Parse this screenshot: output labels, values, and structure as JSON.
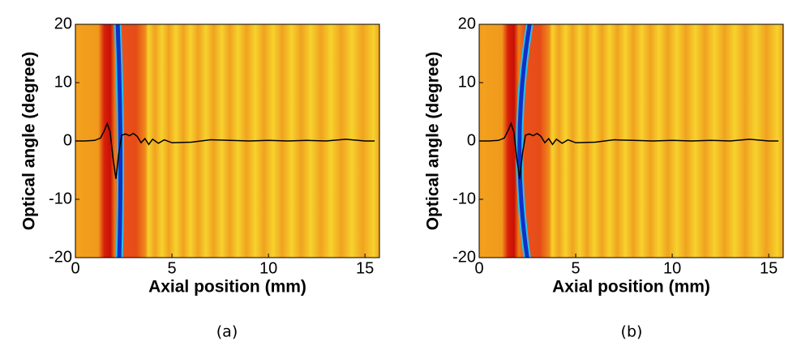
{
  "chart_data": [
    {
      "type": "line",
      "caption": "(a)",
      "xlabel": "Axial position (mm)",
      "ylabel": "Optical angle (degree)",
      "xlim": [
        0,
        15.75
      ],
      "ylim": [
        -20,
        20
      ],
      "xticks": [
        0,
        5,
        10,
        15
      ],
      "yticks": [
        -20,
        -10,
        0,
        10,
        20
      ],
      "color": "#000000",
      "x": [
        0,
        0.5,
        1.0,
        1.3,
        1.5,
        1.65,
        1.8,
        1.95,
        2.1,
        2.25,
        2.4,
        2.6,
        2.8,
        3.0,
        3.2,
        3.4,
        3.6,
        3.8,
        4.0,
        4.3,
        4.6,
        5,
        6,
        7,
        8,
        9,
        10,
        11,
        12,
        13,
        14,
        15,
        15.5
      ],
      "values": [
        0,
        0,
        0.1,
        0.5,
        1.8,
        3,
        1.5,
        -3,
        -6.5,
        -2,
        1,
        1.2,
        0.9,
        1.3,
        0.8,
        -0.3,
        0.4,
        -0.6,
        0.3,
        -0.4,
        0.2,
        -0.3,
        -0.2,
        0.2,
        0.1,
        0,
        0.1,
        0,
        0.1,
        0,
        0.3,
        0,
        0
      ]
    },
    {
      "type": "line",
      "caption": "(b)",
      "xlabel": "Axial position (mm)",
      "ylabel": "Optical angle (degree)",
      "xlim": [
        0,
        15.75
      ],
      "ylim": [
        -20,
        20
      ],
      "xticks": [
        0,
        5,
        10,
        15
      ],
      "yticks": [
        -20,
        -10,
        0,
        10,
        20
      ],
      "color": "#000000",
      "x": [
        0,
        0.5,
        1.0,
        1.3,
        1.5,
        1.65,
        1.8,
        1.95,
        2.1,
        2.25,
        2.4,
        2.6,
        2.8,
        3.0,
        3.2,
        3.4,
        3.6,
        3.8,
        4.0,
        4.3,
        4.6,
        5,
        6,
        7,
        8,
        9,
        10,
        11,
        12,
        13,
        14,
        15,
        15.5
      ],
      "values": [
        0,
        0,
        0.1,
        0.5,
        1.8,
        3,
        1.5,
        -3,
        -6.5,
        -2,
        1,
        1.2,
        0.9,
        1.3,
        0.8,
        -0.3,
        0.4,
        -0.6,
        0.3,
        -0.4,
        0.2,
        -0.3,
        -0.2,
        0.2,
        0.1,
        0,
        0.1,
        0,
        0.1,
        0,
        0.3,
        0,
        0
      ]
    }
  ]
}
